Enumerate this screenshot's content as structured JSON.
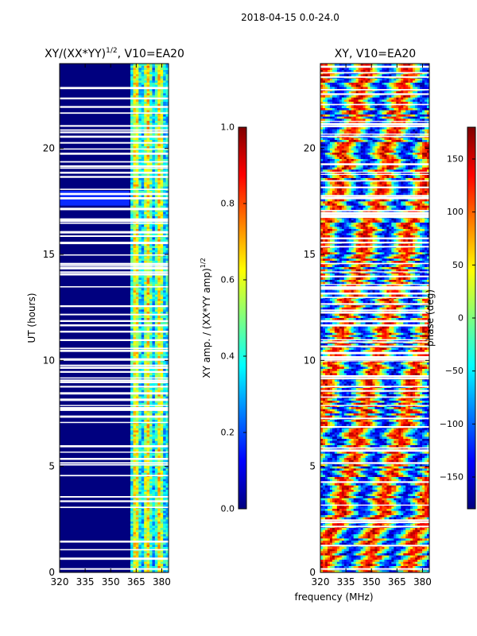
{
  "figure": {
    "suptitle": "2018-04-15 0.0-24.0",
    "shared_xlabel": "frequency (MHz)"
  },
  "colors": {
    "jet_stops": [
      "#00007f",
      "#0000ff",
      "#007fff",
      "#00ffff",
      "#7fff7f",
      "#ffff00",
      "#ff7f00",
      "#ff0000",
      "#7f0000"
    ],
    "background": "#ffffff",
    "axis": "#000000"
  },
  "chart_data": [
    {
      "type": "heatmap",
      "name": "amplitude-ratio",
      "title_main": "XY/(XX*YY)",
      "title_sup": "1/2",
      "title_tail": ", V10=EA20",
      "xlabel": "",
      "ylabel": "UT (hours)",
      "xlim": [
        320,
        384
      ],
      "ylim": [
        0,
        24
      ],
      "xticks": [
        320,
        335,
        350,
        365,
        380
      ],
      "yticks": [
        0,
        5,
        10,
        15,
        20
      ],
      "freq_band_bright": [
        361,
        384
      ],
      "colorbar": {
        "label_main": "XY amp. / (XX*YY amp)",
        "label_sup": "1/2",
        "range": [
          0.0,
          1.0
        ],
        "ticks": [
          0.0,
          0.2,
          0.4,
          0.6,
          0.8,
          1.0
        ],
        "tick_labels": [
          "0.0",
          "0.2",
          "0.4",
          "0.6",
          "0.8",
          "1.0"
        ]
      }
    },
    {
      "type": "heatmap",
      "name": "phase",
      "title": "XY, V10=EA20",
      "xlabel": "frequency (MHz)",
      "ylabel": "",
      "xlim": [
        320,
        384
      ],
      "ylim": [
        0,
        24
      ],
      "xticks": [
        320,
        335,
        350,
        365,
        380
      ],
      "yticks": [
        0,
        5,
        10,
        15,
        20
      ],
      "colorbar": {
        "label": "phase (deg)",
        "range": [
          -180,
          180
        ],
        "ticks": [
          -150,
          -100,
          -50,
          0,
          50,
          100,
          150
        ],
        "tick_labels": [
          "−150",
          "−100",
          "−50",
          "0",
          "50",
          "100",
          "150"
        ]
      }
    }
  ]
}
